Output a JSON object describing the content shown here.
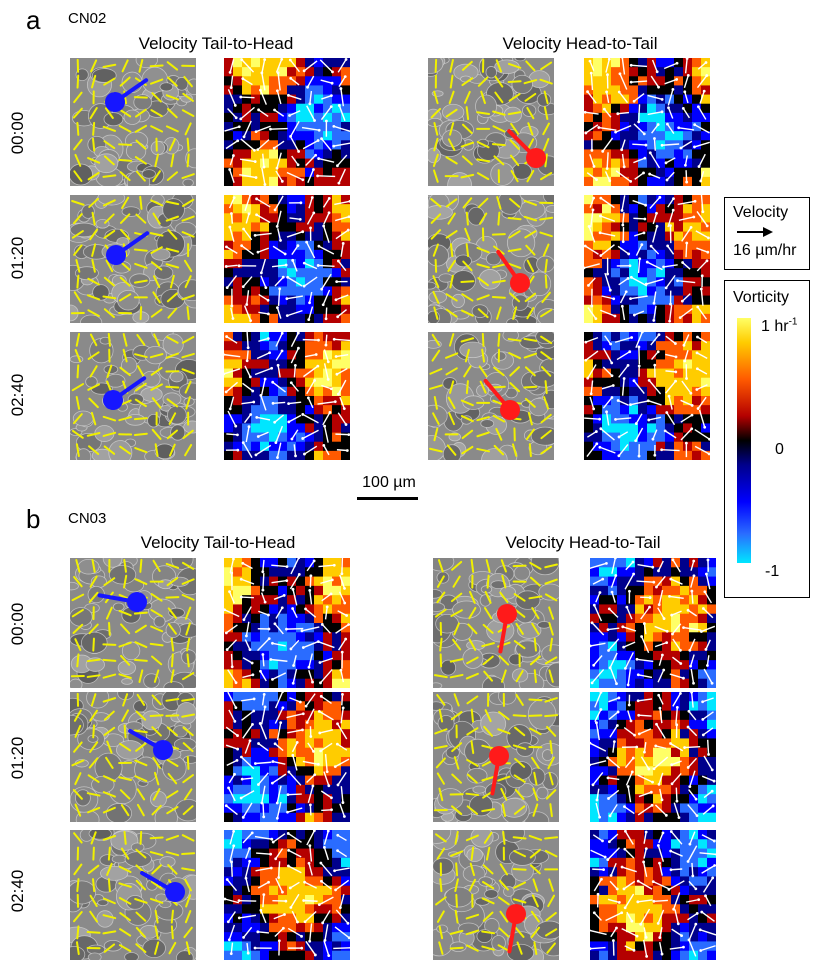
{
  "figure": {
    "panels": [
      {
        "letter": "a",
        "sample": "CN02",
        "columns": [
          "Velocity Tail-to-Head",
          "Velocity Head-to-Tail"
        ],
        "times": [
          "00:00",
          "01:20",
          "02:40"
        ],
        "markers": {
          "tail_to_head_color": "#1616ff",
          "head_to_tail_color": "#ff1a1a"
        }
      },
      {
        "letter": "b",
        "sample": "CN03",
        "columns": [
          "Velocity Tail-to-Head",
          "Velocity Head-to-Tail"
        ],
        "times": [
          "00:00",
          "01:20",
          "02:40"
        ],
        "markers": {
          "tail_to_head_color": "#1616ff",
          "head_to_tail_color": "#ff1a1a"
        }
      }
    ],
    "scale_bar": {
      "label": "100 µm"
    },
    "legend": {
      "velocity": {
        "title": "Velocity",
        "value_label": "16 µm/hr"
      },
      "vorticity": {
        "title": "Vorticity",
        "max_label_base": "1 hr",
        "max_label_exponent": "-1",
        "mid_label": "0",
        "min_label": "-1",
        "colormap": [
          "#00e6ff",
          "#2a6cff",
          "#0000ff",
          "#00008c",
          "#000000",
          "#b40000",
          "#ff5a00",
          "#ffcc00",
          "#ffff66"
        ]
      }
    },
    "colors": {
      "director_lines": "#f0f000",
      "velocity_arrows": "#ffffff",
      "phase_background": "#8a8a8a"
    }
  }
}
